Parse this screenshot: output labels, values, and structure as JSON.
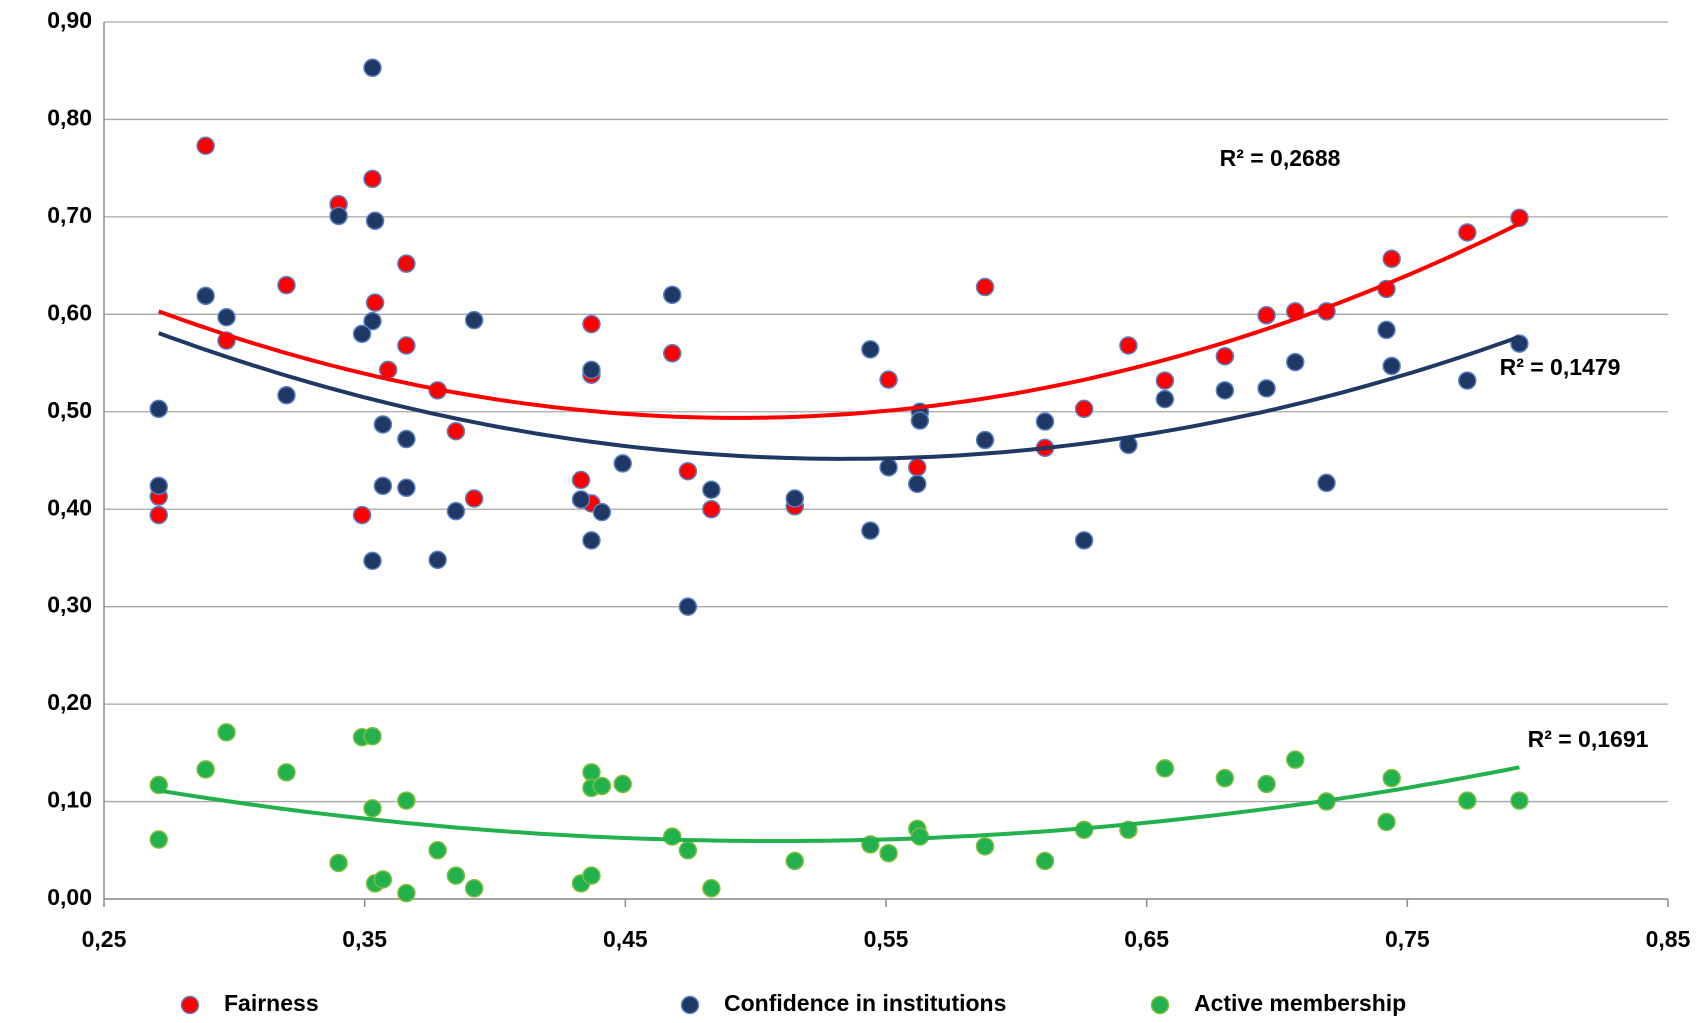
{
  "chart_data": {
    "type": "scatter",
    "xlim": [
      0.25,
      0.85
    ],
    "ylim": [
      0,
      0.9
    ],
    "xticks": [
      {
        "value": 0.25,
        "label": "0,25"
      },
      {
        "value": 0.35,
        "label": "0,35"
      },
      {
        "value": 0.45,
        "label": "0,45"
      },
      {
        "value": 0.55,
        "label": "0,55"
      },
      {
        "value": 0.65,
        "label": "0,65"
      },
      {
        "value": 0.75,
        "label": "0,75"
      },
      {
        "value": 0.85,
        "label": "0,85"
      }
    ],
    "yticks": [
      {
        "value": 0,
        "label": "0,00"
      },
      {
        "value": 0.1,
        "label": "0,10"
      },
      {
        "value": 0.2,
        "label": "0,20"
      },
      {
        "value": 0.3,
        "label": "0,30"
      },
      {
        "value": 0.4,
        "label": "0,40"
      },
      {
        "value": 0.5,
        "label": "0,50"
      },
      {
        "value": 0.6,
        "label": "0,60"
      },
      {
        "value": 0.7,
        "label": "0,70"
      },
      {
        "value": 0.8,
        "label": "0,80"
      },
      {
        "value": 0.9,
        "label": "0,90"
      }
    ],
    "grid": true,
    "legend": "bottom",
    "series": [
      {
        "name": "Fairness",
        "color": "#ff0000",
        "trendline_label": "R² = 0,2688",
        "x": [
          0.289,
          0.353,
          0.34,
          0.366,
          0.32,
          0.354,
          0.297,
          0.366,
          0.359,
          0.378,
          0.385,
          0.271,
          0.271,
          0.349,
          0.392,
          0.437,
          0.437,
          0.433,
          0.437,
          0.468,
          0.474,
          0.483,
          0.515,
          0.551,
          0.562,
          0.588,
          0.611,
          0.626,
          0.643,
          0.657,
          0.68,
          0.696,
          0.707,
          0.719,
          0.742,
          0.744,
          0.773,
          0.793
        ],
        "values": [
          0.773,
          0.739,
          0.713,
          0.652,
          0.63,
          0.612,
          0.573,
          0.568,
          0.543,
          0.522,
          0.48,
          0.413,
          0.394,
          0.394,
          0.411,
          0.59,
          0.538,
          0.43,
          0.406,
          0.56,
          0.439,
          0.4,
          0.403,
          0.533,
          0.443,
          0.628,
          0.463,
          0.503,
          0.568,
          0.532,
          0.557,
          0.599,
          0.603,
          0.603,
          0.626,
          0.657,
          0.684,
          0.699
        ]
      },
      {
        "name": "Confidence in institutions",
        "color": "#1f3864",
        "trendline_label": "R² = 0,1479",
        "x": [
          0.353,
          0.34,
          0.354,
          0.289,
          0.297,
          0.392,
          0.353,
          0.349,
          0.32,
          0.271,
          0.357,
          0.366,
          0.271,
          0.357,
          0.366,
          0.385,
          0.353,
          0.378,
          0.437,
          0.449,
          0.433,
          0.441,
          0.437,
          0.468,
          0.483,
          0.474,
          0.515,
          0.544,
          0.551,
          0.563,
          0.563,
          0.562,
          0.544,
          0.588,
          0.611,
          0.626,
          0.643,
          0.657,
          0.68,
          0.696,
          0.707,
          0.719,
          0.742,
          0.744,
          0.773,
          0.793
        ],
        "values": [
          0.853,
          0.701,
          0.696,
          0.619,
          0.597,
          0.594,
          0.593,
          0.58,
          0.517,
          0.503,
          0.487,
          0.472,
          0.424,
          0.424,
          0.422,
          0.398,
          0.347,
          0.348,
          0.543,
          0.447,
          0.41,
          0.397,
          0.368,
          0.62,
          0.42,
          0.3,
          0.411,
          0.564,
          0.443,
          0.5,
          0.491,
          0.426,
          0.378,
          0.471,
          0.49,
          0.368,
          0.466,
          0.513,
          0.522,
          0.524,
          0.551,
          0.427,
          0.584,
          0.547,
          0.532,
          0.57
        ]
      },
      {
        "name": "Active membership",
        "color": "#22b14c",
        "trendline_label": "R² = 0,1691",
        "x": [
          0.271,
          0.271,
          0.289,
          0.297,
          0.32,
          0.34,
          0.349,
          0.353,
          0.353,
          0.354,
          0.357,
          0.366,
          0.366,
          0.378,
          0.385,
          0.392,
          0.433,
          0.437,
          0.437,
          0.441,
          0.449,
          0.437,
          0.468,
          0.474,
          0.483,
          0.515,
          0.544,
          0.551,
          0.562,
          0.563,
          0.588,
          0.611,
          0.626,
          0.643,
          0.657,
          0.68,
          0.696,
          0.707,
          0.719,
          0.742,
          0.744,
          0.773,
          0.793
        ],
        "values": [
          0.117,
          0.061,
          0.133,
          0.171,
          0.13,
          0.037,
          0.166,
          0.167,
          0.093,
          0.016,
          0.02,
          0.101,
          0.006,
          0.05,
          0.024,
          0.011,
          0.016,
          0.13,
          0.114,
          0.116,
          0.118,
          0.024,
          0.064,
          0.05,
          0.011,
          0.039,
          0.056,
          0.047,
          0.072,
          0.064,
          0.054,
          0.039,
          0.071,
          0.071,
          0.134,
          0.124,
          0.118,
          0.143,
          0.1,
          0.079,
          0.124,
          0.101,
          0.101
        ]
      }
    ]
  }
}
